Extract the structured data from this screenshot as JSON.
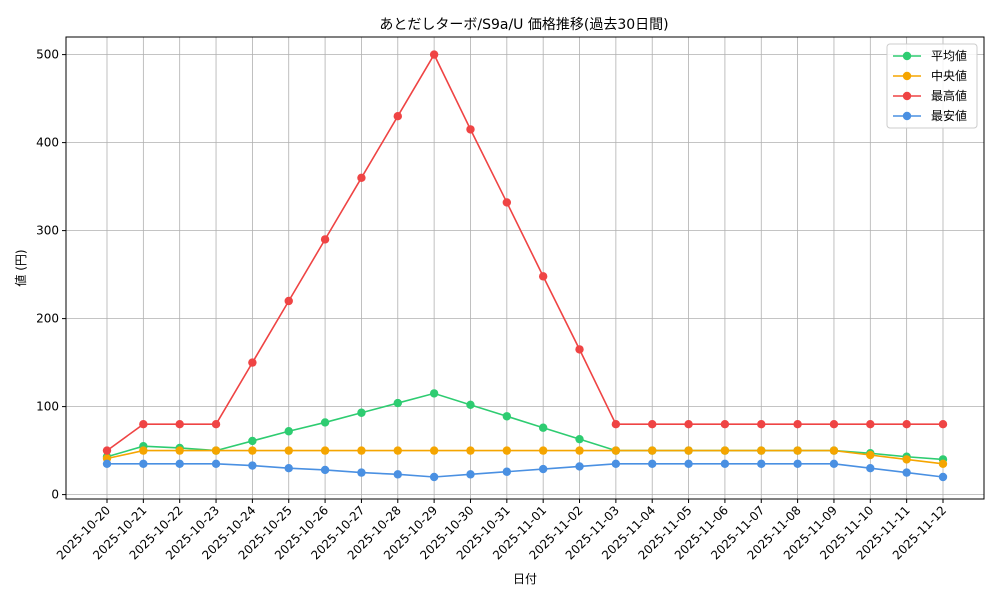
{
  "chart_data": {
    "type": "line",
    "title": "あとだしターボ/S9a/U 価格推移(過去30日間)",
    "xlabel": "日付",
    "ylabel": "値 (円)",
    "ylim": [
      0,
      520
    ],
    "yticks": [
      0,
      100,
      200,
      300,
      400,
      500
    ],
    "grid": true,
    "legend_position": "top-right",
    "x": [
      "2025-10-20",
      "2025-10-21",
      "2025-10-22",
      "2025-10-23",
      "2025-10-24",
      "2025-10-25",
      "2025-10-26",
      "2025-10-27",
      "2025-10-28",
      "2025-10-29",
      "2025-10-30",
      "2025-10-31",
      "2025-11-01",
      "2025-11-02",
      "2025-11-03",
      "2025-11-04",
      "2025-11-05",
      "2025-11-06",
      "2025-11-07",
      "2025-11-08",
      "2025-11-09",
      "2025-11-10",
      "2025-11-11",
      "2025-11-12"
    ],
    "series": [
      {
        "name": "平均値",
        "color": "#2ecc71",
        "values": [
          43,
          55,
          53,
          50,
          61,
          72,
          82,
          93,
          104,
          115,
          102,
          89,
          76,
          63,
          50,
          50,
          50,
          50,
          50,
          50,
          50,
          47,
          43,
          40
        ]
      },
      {
        "name": "中央値",
        "color": "#f5a500",
        "values": [
          41,
          50,
          50,
          50,
          50,
          50,
          50,
          50,
          50,
          50,
          50,
          50,
          50,
          50,
          50,
          50,
          50,
          50,
          50,
          50,
          50,
          45,
          40,
          35
        ]
      },
      {
        "name": "最高値",
        "color": "#ef4444",
        "values": [
          50,
          80,
          80,
          80,
          150,
          220,
          290,
          360,
          430,
          500,
          415,
          332,
          248,
          165,
          80,
          80,
          80,
          80,
          80,
          80,
          80,
          80,
          80,
          80
        ]
      },
      {
        "name": "最安値",
        "color": "#4a90e2",
        "values": [
          35,
          35,
          35,
          35,
          33,
          30,
          28,
          25,
          23,
          20,
          23,
          26,
          29,
          32,
          35,
          35,
          35,
          35,
          35,
          35,
          35,
          30,
          25,
          20
        ]
      }
    ]
  }
}
